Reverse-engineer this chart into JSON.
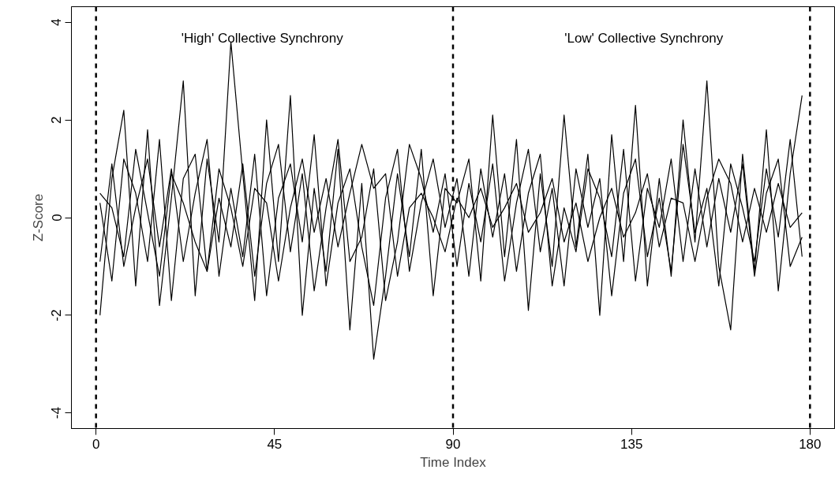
{
  "chart_data": {
    "type": "line",
    "xlabel": "Time Index",
    "ylabel": "Z-Score",
    "x": [
      1,
      4,
      7,
      10,
      13,
      16,
      19,
      22,
      25,
      28,
      31,
      34,
      37,
      40,
      43,
      46,
      49,
      52,
      55,
      58,
      61,
      64,
      67,
      70,
      73,
      76,
      79,
      82,
      85,
      88,
      91,
      94,
      97,
      100,
      103,
      106,
      109,
      112,
      115,
      118,
      121,
      124,
      127,
      130,
      133,
      136,
      139,
      142,
      145,
      148,
      151,
      154,
      157,
      160,
      163,
      166,
      169,
      172,
      175,
      178
    ],
    "series": [
      {
        "color": "#000000",
        "values": [
          -2.0,
          0.8,
          2.2,
          -1.4,
          1.8,
          -1.8,
          0.4,
          2.8,
          -1.6,
          1.2,
          -0.5,
          3.6,
          0.9,
          -1.7,
          2.0,
          -0.9,
          2.5,
          -2.0,
          0.6,
          -1.1,
          1.4,
          -2.3,
          0.7,
          -2.9,
          -1.2,
          0.9,
          -0.8,
          1.4,
          -1.6,
          0.6,
          0.3,
          1.2,
          -1.3,
          2.1,
          -0.8,
          1.6,
          -1.9,
          0.9,
          -1.0,
          2.1,
          -0.6,
          1.3,
          -2.0,
          1.7,
          -0.9,
          2.3,
          -1.4,
          0.8,
          -1.2,
          2.0,
          -0.5,
          2.8,
          -1.0,
          -2.3,
          1.3,
          -1.1,
          1.8,
          -1.5,
          0.9,
          2.5
        ]
      },
      {
        "color": "#000000",
        "values": [
          0.3,
          -1.3,
          1.2,
          0.5,
          -0.9,
          1.6,
          -1.7,
          0.8,
          1.3,
          -1.1,
          0.4,
          -0.6,
          1.1,
          -1.2,
          0.7,
          1.5,
          -0.7,
          0.9,
          -1.5,
          0.2,
          1.6,
          -0.9,
          -0.4,
          1.0,
          -1.7,
          -0.5,
          1.5,
          0.8,
          -0.3,
          0.9,
          -1.0,
          0.7,
          -0.5,
          1.1,
          -1.3,
          0.3,
          1.4,
          -0.7,
          0.6,
          -1.4,
          1.0,
          -0.2,
          0.8,
          -1.6,
          0.5,
          1.2,
          -0.8,
          0.4,
          -1.1,
          1.5,
          -0.3,
          0.6,
          -1.4,
          1.1,
          0.2,
          -0.9,
          1.0,
          -0.4,
          1.6,
          -0.8
        ]
      },
      {
        "color": "#000000",
        "values": [
          -0.9,
          1.1,
          -1.0,
          0.2,
          1.2,
          -0.6,
          1.0,
          -0.9,
          0.5,
          1.6,
          -1.2,
          0.6,
          -0.8,
          1.3,
          -1.6,
          0.4,
          1.1,
          -0.5,
          1.7,
          -1.4,
          0.3,
          1.0,
          -0.6,
          -1.8,
          0.4,
          1.4,
          -1.1,
          0.3,
          1.2,
          -0.2,
          0.8,
          -1.2,
          1.0,
          -0.4,
          0.9,
          -1.1,
          0.5,
          1.3,
          -1.4,
          0.2,
          -0.7,
          1.0,
          0.4,
          -0.8,
          1.4,
          -1.3,
          0.6,
          -0.2,
          1.2,
          -0.9,
          1.0,
          -0.6,
          0.8,
          -0.3,
          1.1,
          -1.2,
          0.5,
          1.2,
          -1.0,
          -0.4
        ]
      },
      {
        "color": "#000000",
        "values": [
          0.5,
          0.2,
          -0.8,
          1.4,
          0.1,
          -1.2,
          0.9,
          0.3,
          -0.5,
          -1.1,
          1.0,
          0.2,
          -1.0,
          0.6,
          0.3,
          -1.3,
          0.2,
          1.2,
          -0.3,
          0.8,
          -0.6,
          0.5,
          1.5,
          0.6,
          0.9,
          -1.2,
          0.2,
          0.5,
          0.0,
          -0.7,
          0.4,
          0.0,
          0.6,
          -0.2,
          0.2,
          0.7,
          -0.3,
          0.1,
          0.8,
          -0.5,
          0.3,
          -0.9,
          0.0,
          0.6,
          -0.4,
          0.1,
          0.9,
          -0.6,
          0.4,
          0.3,
          -0.9,
          0.4,
          1.2,
          0.7,
          -0.5,
          0.6,
          -0.3,
          0.7,
          -0.2,
          0.1
        ]
      }
    ],
    "xlim": [
      -6.2,
      186.2
    ],
    "ylim": [
      -4.32,
      4.32
    ],
    "xticks": [
      0,
      45,
      90,
      135,
      180
    ],
    "yticks": [
      -4,
      -2,
      0,
      2,
      4
    ],
    "ref_lines": [
      {
        "axis": "x",
        "value": 0,
        "line_style": "dashed",
        "color": "#000000"
      },
      {
        "axis": "x",
        "value": 90,
        "line_style": "dashed",
        "color": "#000000"
      },
      {
        "axis": "x",
        "value": 180,
        "line_style": "dashed",
        "color": "#000000"
      }
    ],
    "annotations": [
      "'High' Collective Synchrony",
      "'Low' Collective Synchrony"
    ],
    "grid": false,
    "marker": "none",
    "line_style": "solid"
  }
}
